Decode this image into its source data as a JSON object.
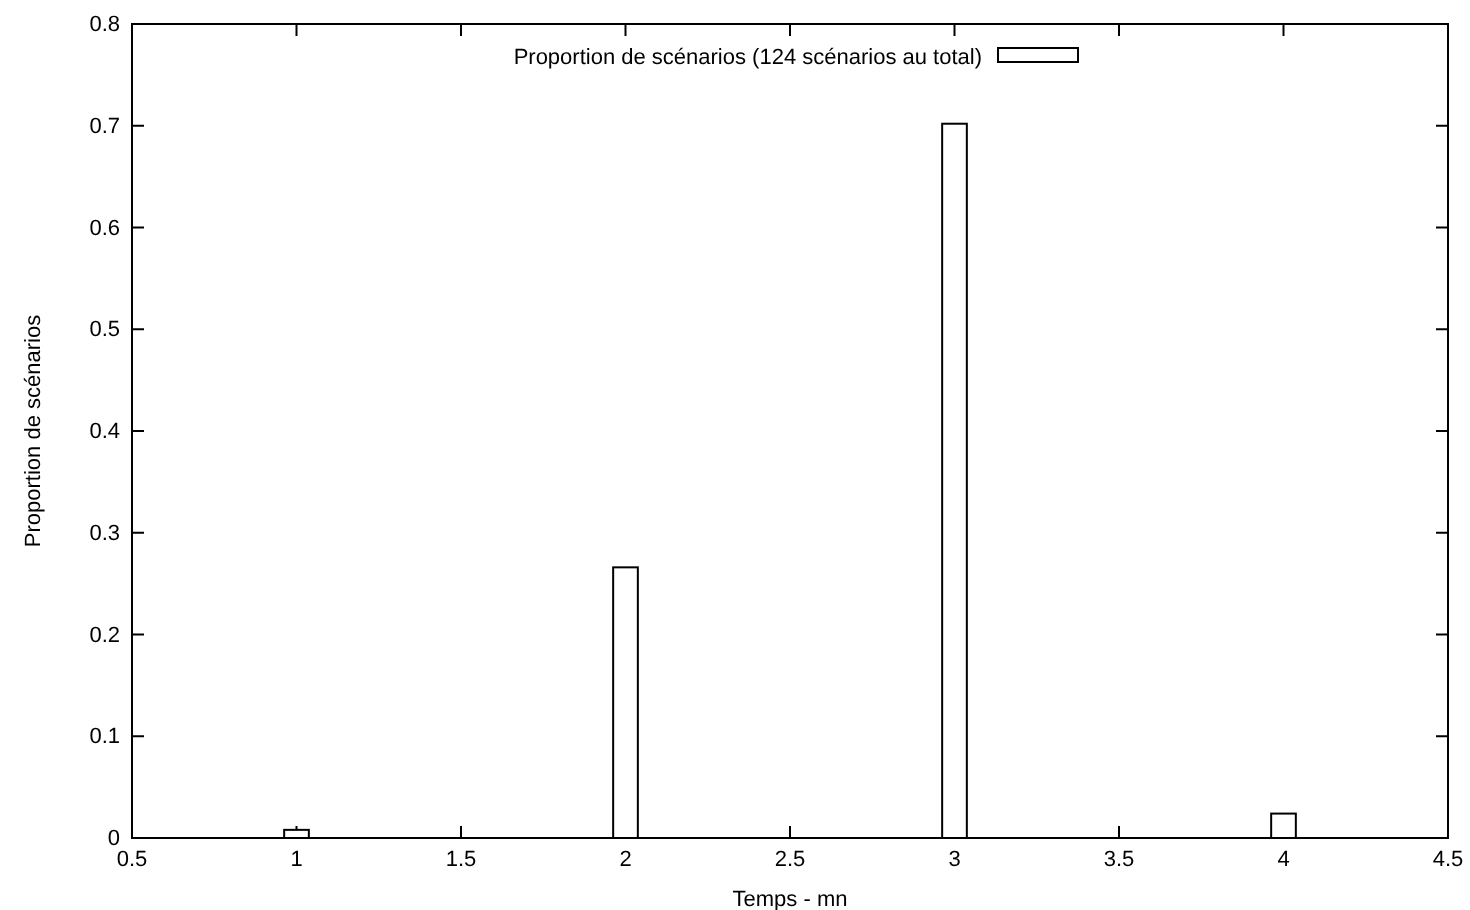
{
  "chart_data": {
    "type": "bar",
    "xlabel": "Temps - mn",
    "ylabel": "Proportion de scénarios",
    "x": [
      1,
      2,
      3,
      4
    ],
    "series": [
      {
        "name": "Proportion de scénarios (124 scénarios au total)",
        "color": "#ffffff",
        "values": [
          0.008,
          0.266,
          0.702,
          0.024
        ]
      }
    ],
    "xlim": [
      0.5,
      4.5
    ],
    "xticks": [
      {
        "value": 0.5,
        "label": "0.5"
      },
      1,
      {
        "value": 1.5,
        "label": "1.5"
      },
      2,
      {
        "value": 2.5,
        "label": "2.5"
      },
      3,
      {
        "value": 3.5,
        "label": "3.5"
      },
      4,
      {
        "value": 4.5,
        "label": "4.5"
      }
    ],
    "ylim": [
      0,
      0.8
    ],
    "yticks": [
      0,
      {
        "value": 0.1,
        "label": "0.1"
      },
      {
        "value": 0.2,
        "label": "0.2"
      },
      {
        "value": 0.3,
        "label": "0.3"
      },
      {
        "value": 0.4,
        "label": "0.4"
      },
      {
        "value": 0.5,
        "label": "0.5"
      },
      {
        "value": 0.6,
        "label": "0.6"
      },
      {
        "value": 0.7,
        "label": "0.7"
      },
      {
        "value": 0.8,
        "label": "0.8"
      }
    ],
    "legend": "top",
    "grid": false
  }
}
